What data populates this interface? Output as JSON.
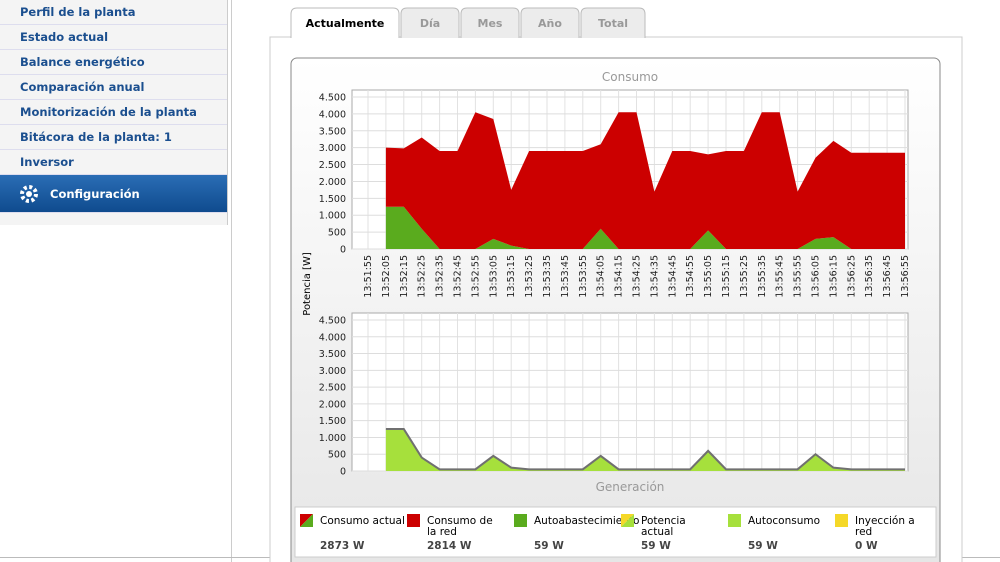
{
  "sidebar": [
    "Perfil de la planta",
    "Estado actual",
    "Balance energético",
    "Comparación anual",
    "Monitorización de la planta",
    "Bitácora de la planta: 1",
    "Inversor",
    "Configuración"
  ],
  "tabs": [
    "Actualmente",
    "Día",
    "Mes",
    "Año",
    "Total"
  ],
  "chart_data": [
    {
      "type": "area",
      "title": "Consumo",
      "ylabel": "Potencia [W]",
      "stacked": true,
      "grid": true,
      "categories": [
        "13:51:55",
        "13:52:05",
        "13:52:15",
        "13:52:25",
        "13:52:35",
        "13:52:45",
        "13:52:55",
        "13:53:05",
        "13:53:15",
        "13:53:25",
        "13:53:35",
        "13:53:45",
        "13:53:55",
        "13:54:05",
        "13:54:15",
        "13:54:25",
        "13:54:35",
        "13:54:45",
        "13:54:55",
        "13:55:05",
        "13:55:15",
        "13:55:25",
        "13:55:35",
        "13:55:45",
        "13:55:55",
        "13:56:05",
        "13:56:15",
        "13:56:25",
        "13:56:35",
        "13:56:45",
        "13:56:55"
      ],
      "ylim": [
        0,
        4500
      ],
      "yticks": [
        0,
        {
          "value": 500,
          "label": "500"
        },
        {
          "value": 1000,
          "label": "1.000"
        },
        {
          "value": 1500,
          "label": "1.500"
        },
        {
          "value": 2000,
          "label": "2.000"
        },
        {
          "value": 2500,
          "label": "2.500"
        },
        {
          "value": 3000,
          "label": "3.000"
        },
        {
          "value": 3500,
          "label": "3.500"
        },
        {
          "value": 4000,
          "label": "4.000"
        },
        {
          "value": 4500,
          "label": "4.500"
        }
      ],
      "series": [
        {
          "name": "Autoabastecimiento",
          "color": "#5aab1e",
          "mark": "area",
          "values": [
            null,
            1250,
            1250,
            600,
            0,
            0,
            0,
            300,
            100,
            0,
            0,
            0,
            0,
            600,
            0,
            0,
            0,
            0,
            0,
            550,
            0,
            0,
            0,
            0,
            0,
            300,
            350,
            0,
            0,
            0,
            0
          ]
        },
        {
          "name": "Consumo de la red",
          "color": "#cc0000",
          "mark": "area",
          "values": [
            null,
            1750,
            1730,
            2700,
            2900,
            2900,
            4050,
            3550,
            1650,
            2900,
            2900,
            2900,
            2900,
            2500,
            4050,
            4050,
            1700,
            2900,
            2900,
            2250,
            2900,
            2900,
            4050,
            4050,
            1700,
            2400,
            2850,
            2850,
            2850,
            2850,
            2850
          ]
        }
      ]
    },
    {
      "type": "area",
      "title": "Generación",
      "stacked": false,
      "grid": true,
      "ylim": [
        0,
        4500
      ],
      "yticks": [
        0,
        {
          "value": 500,
          "label": "500"
        },
        {
          "value": 1000,
          "label": "1.000"
        },
        {
          "value": 1500,
          "label": "1.500"
        },
        {
          "value": 2000,
          "label": "2.000"
        },
        {
          "value": 2500,
          "label": "2.500"
        },
        {
          "value": 3000,
          "label": "3.000"
        },
        {
          "value": 3500,
          "label": "3.500"
        },
        {
          "value": 4000,
          "label": "4.000"
        },
        {
          "value": 4500,
          "label": "4.500"
        }
      ],
      "series": [
        {
          "name": "Autoconsumo",
          "color": "#a6e03c",
          "mark": "area",
          "values": [
            null,
            1250,
            1250,
            400,
            50,
            50,
            50,
            450,
            100,
            50,
            50,
            50,
            50,
            450,
            50,
            50,
            50,
            50,
            50,
            600,
            50,
            50,
            50,
            50,
            50,
            500,
            100,
            50,
            50,
            50,
            50
          ]
        },
        {
          "name": "Potencia actual",
          "color": "#707070",
          "mark": "line",
          "values": [
            null,
            1250,
            1250,
            400,
            50,
            50,
            50,
            450,
            100,
            50,
            50,
            50,
            50,
            450,
            50,
            50,
            50,
            50,
            50,
            600,
            50,
            50,
            50,
            50,
            50,
            500,
            100,
            50,
            50,
            50,
            50
          ]
        }
      ]
    }
  ],
  "legend": [
    {
      "name": "Consumo actual",
      "value": "2873 W",
      "colors": [
        "#cc0000",
        "#5aab1e"
      ]
    },
    {
      "name": "Consumo de la red",
      "value": "2814 W",
      "colors": [
        "#cc0000"
      ]
    },
    {
      "name": "Autoabastecimiento",
      "value": "59 W",
      "colors": [
        "#5aab1e"
      ]
    },
    {
      "name": "Potencia actual",
      "value": "59 W",
      "colors": [
        "#f5d828",
        "#a6e03c"
      ]
    },
    {
      "name": "Autoconsumo",
      "value": "59 W",
      "colors": [
        "#a6e03c"
      ]
    },
    {
      "name": "Inyección a red",
      "value": "0 W",
      "colors": [
        "#f5d828"
      ]
    }
  ]
}
